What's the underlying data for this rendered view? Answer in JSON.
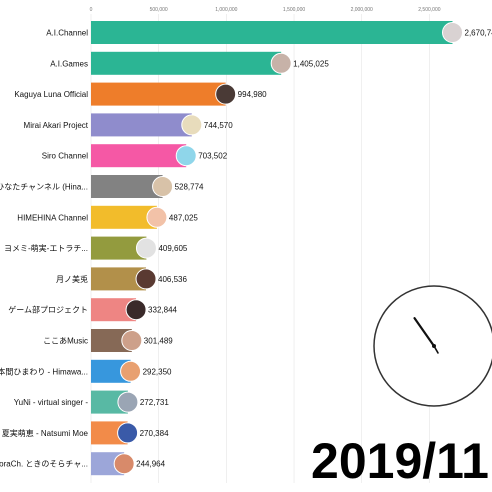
{
  "chart_data": {
    "type": "bar",
    "orientation": "horizontal",
    "date": "2019/11",
    "xlim": [
      0,
      2800000
    ],
    "ticks": [
      0,
      500000,
      1000000,
      1500000,
      2000000,
      2500000
    ],
    "tick_labels": [
      "0",
      "500,000",
      "1,000,000",
      "1,500,000",
      "2,000,000",
      "2,500,000"
    ],
    "grid": true,
    "categories": [
      "A.I.Channel",
      "A.I.Games",
      "Kaguya Luna Official",
      "Mirai Akari Project",
      "Siro Channel",
      "ひなたチャンネル (Hina...",
      "HIMEHINA Channel",
      "ヨメミ-萌実-エトラチ...",
      "月ノ美兎",
      "ゲーム部プロジェクト",
      "ここあMusic",
      "本間ひまわり - Himawa...",
      "YuNi - virtual singer -",
      "夏実萌恵 - Natsumi Moe",
      "SoraCh. ときのそらチャ..."
    ],
    "values": [
      2670747,
      1405025,
      994980,
      744570,
      703502,
      528774,
      487025,
      409605,
      406536,
      332844,
      301489,
      292350,
      272731,
      270384,
      244964
    ],
    "value_labels": [
      "2,670,747",
      "1,405,025",
      "994,980",
      "744,570",
      "703,502",
      "528,774",
      "487,025",
      "409,605",
      "406,536",
      "332,844",
      "301,489",
      "292,350",
      "272,731",
      "270,384",
      "244,964"
    ],
    "colors": [
      "#2bb594",
      "#2bb594",
      "#ee7d2a",
      "#8f8ccc",
      "#f558a5",
      "#828282",
      "#f2bc2b",
      "#939b3e",
      "#b2904a",
      "#ee8583",
      "#866956",
      "#3797dd",
      "#58b9a4",
      "#f28b49",
      "#9ca6d9"
    ],
    "avatar_colors": [
      "#d9d2d2",
      "#c7b2a8",
      "#4a3a36",
      "#e8dcbc",
      "#8fd6ea",
      "#d8c2a8",
      "#f2c2a8",
      "#e2e2e2",
      "#5a3a32",
      "#3a2a2a",
      "#cda08a",
      "#e8a070",
      "#9aa5b4",
      "#3a5aa8",
      "#d88a6a"
    ],
    "clock": {
      "hour_angle": 325,
      "minute_angle": 150
    }
  }
}
